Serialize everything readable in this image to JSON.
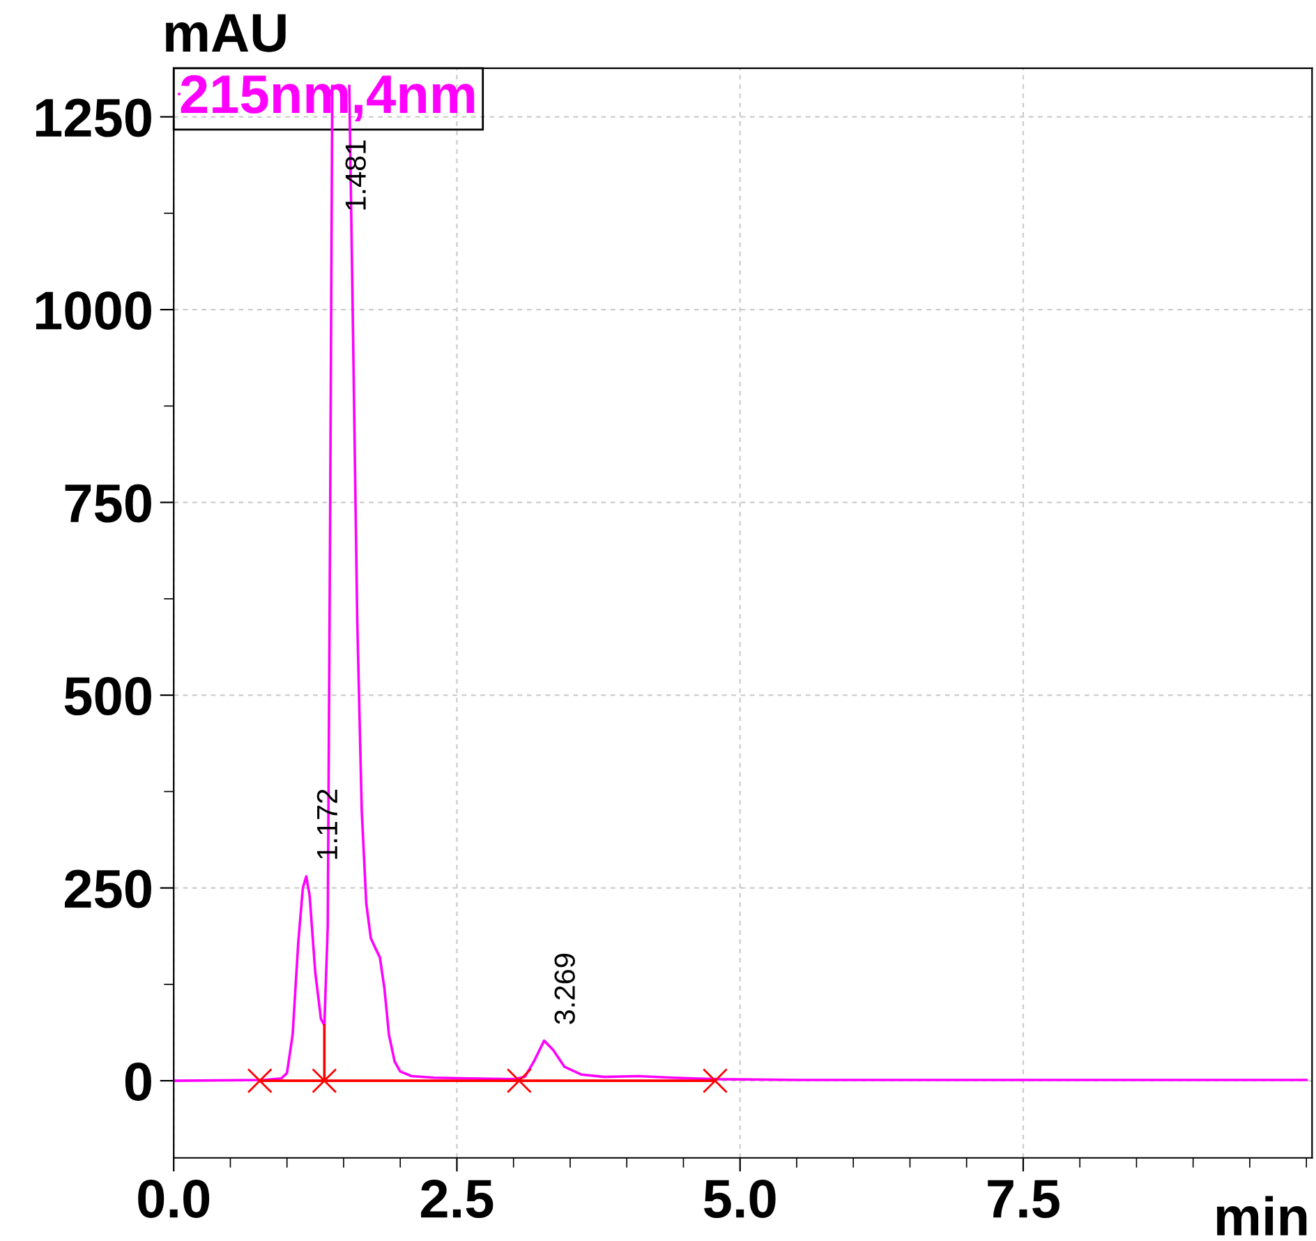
{
  "chart_data": {
    "type": "line",
    "xlabel": "min",
    "ylabel": "mAU",
    "xlim": [
      0,
      10.05
    ],
    "ylim": [
      -100,
      1313
    ],
    "xticks": [
      {
        "value": 0,
        "label": "0.0"
      },
      {
        "value": 0.5,
        "label": null
      },
      {
        "value": 1,
        "label": null
      },
      {
        "value": 1.5,
        "label": null
      },
      {
        "value": 2,
        "label": null
      },
      2.5,
      {
        "value": 3,
        "label": null
      },
      {
        "value": 3.5,
        "label": null
      },
      {
        "value": 4,
        "label": null
      },
      {
        "value": 4.5,
        "label": null
      },
      {
        "value": 5,
        "label": "5.0"
      },
      {
        "value": 5.5,
        "label": null
      },
      {
        "value": 6,
        "label": null
      },
      {
        "value": 6.5,
        "label": null
      },
      {
        "value": 7,
        "label": null
      },
      7.5,
      {
        "value": 8,
        "label": null
      },
      {
        "value": 8.5,
        "label": null
      },
      {
        "value": 9,
        "label": null
      },
      {
        "value": 9.5,
        "label": null
      },
      {
        "value": 10,
        "label": null
      }
    ],
    "yticks": [
      0,
      {
        "value": 125,
        "label": null
      },
      250,
      {
        "value": 375,
        "label": null
      },
      500,
      {
        "value": 625,
        "label": null
      },
      750,
      {
        "value": 875,
        "label": null
      },
      1000,
      {
        "value": 1125,
        "label": null
      },
      1250
    ],
    "grid": true,
    "legend": "top left",
    "marker": "none",
    "line_style": "solid",
    "series": [
      {
        "name": "215nm,4nm",
        "color": "#ff00ff",
        "x": [
          0,
          0.8,
          0.95,
          1.0,
          1.05,
          1.1,
          1.14,
          1.17,
          1.2,
          1.25,
          1.3,
          1.33,
          1.36,
          1.38,
          1.4,
          1.48,
          1.55,
          1.58,
          1.62,
          1.66,
          1.7,
          1.74,
          1.78,
          1.82,
          1.86,
          1.9,
          1.95,
          2.0,
          2.1,
          2.3,
          2.6,
          3.0,
          3.1,
          3.18,
          3.27,
          3.35,
          3.45,
          3.6,
          3.8,
          4.1,
          4.4,
          4.8,
          5.5,
          7,
          10
        ],
        "values": [
          0,
          1,
          3,
          10,
          60,
          180,
          250,
          265,
          240,
          140,
          80,
          72,
          200,
          700,
          1290,
          null,
          1290,
          1000,
          600,
          350,
          230,
          185,
          172,
          160,
          120,
          60,
          25,
          12,
          6,
          4,
          3,
          2,
          5,
          25,
          52,
          40,
          18,
          8,
          5,
          6,
          4,
          2,
          1,
          1,
          1
        ]
      },
      {
        "color": "#ff0000",
        "x": [
          0.76,
          1.33,
          3.05,
          4.78
        ],
        "values": [
          0,
          0,
          0,
          0
        ],
        "marker": "cross"
      },
      {
        "color": "#ff0000",
        "x": [
          1.33,
          1.33
        ],
        "values": [
          0,
          72
        ]
      }
    ],
    "annotations": [
      "1.481",
      {
        "text": "1.172",
        "x": 1.172,
        "y": 265
      },
      {
        "text": "3.269",
        "x": 3.269,
        "y": 52
      }
    ]
  }
}
